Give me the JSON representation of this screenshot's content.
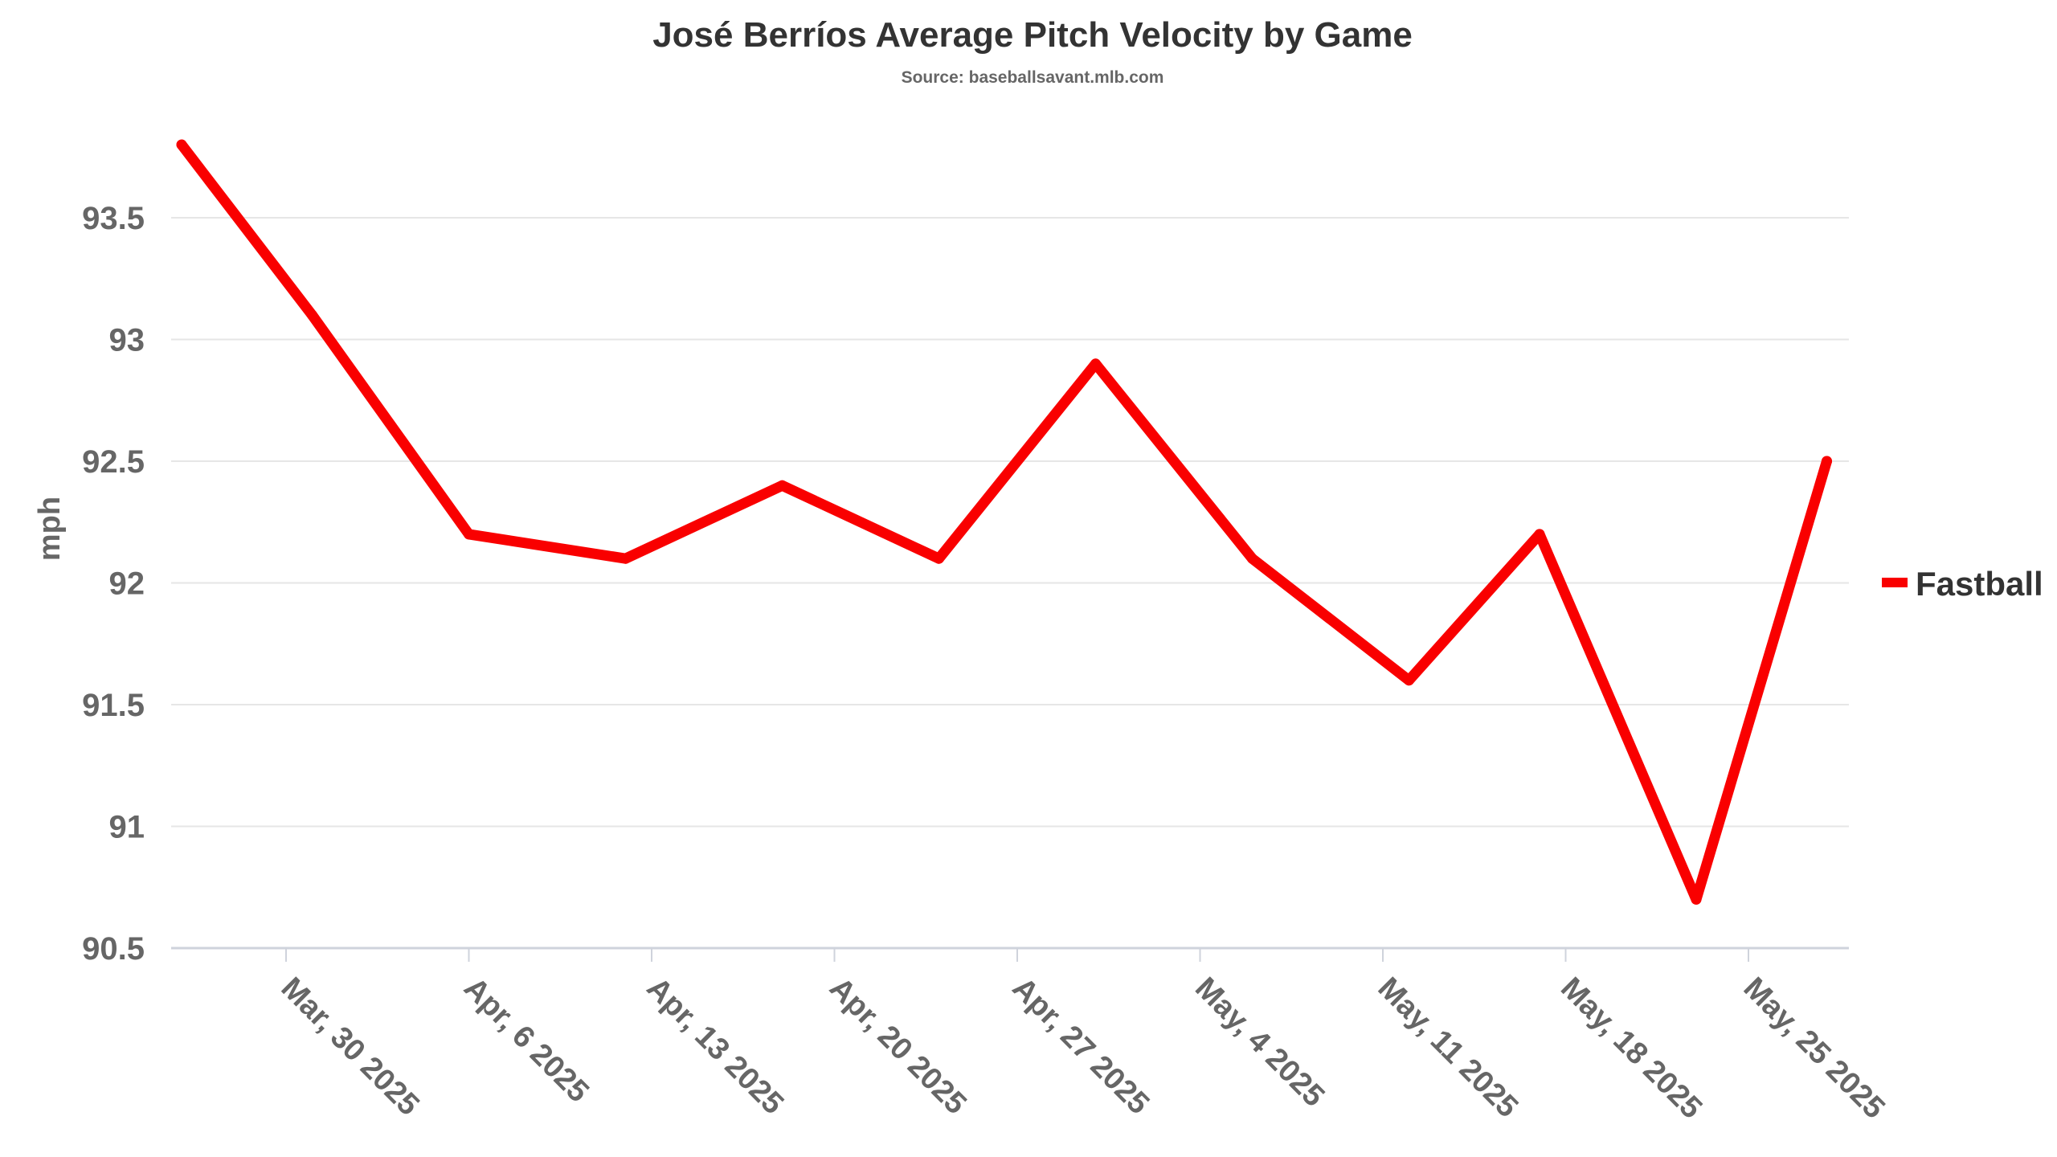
{
  "chart_data": {
    "type": "line",
    "title": "José Berríos Average Pitch Velocity by Game",
    "subtitle": "Source: baseballsavant.mlb.com",
    "xlabel": "",
    "ylabel": "mph",
    "ylim": [
      90.5,
      93.85
    ],
    "yticks": [
      90.5,
      91,
      91.5,
      92,
      92.5,
      93,
      93.5
    ],
    "ytick_labels": [
      "90.5",
      "91",
      "91.5",
      "92",
      "92.5",
      "93",
      "93.5"
    ],
    "xticks": [
      "2025-03-30",
      "2025-04-06",
      "2025-04-13",
      "2025-04-20",
      "2025-04-27",
      "2025-05-04",
      "2025-05-11",
      "2025-05-18",
      "2025-05-25"
    ],
    "xtick_labels": [
      "Mar, 30 2025",
      "Apr, 6 2025",
      "Apr, 13 2025",
      "Apr, 20 2025",
      "Apr, 27 2025",
      "May, 4 2025",
      "May, 11 2025",
      "May, 18 2025",
      "May, 25 2025"
    ],
    "grid": true,
    "legend_position": "right",
    "series": [
      {
        "name": "Fastball",
        "color": "#f90000",
        "x": [
          "2025-03-26",
          "2025-03-31",
          "2025-04-06",
          "2025-04-12",
          "2025-04-18",
          "2025-04-24",
          "2025-04-30",
          "2025-05-06",
          "2025-05-12",
          "2025-05-17",
          "2025-05-23",
          "2025-05-28"
        ],
        "values": [
          93.8,
          93.1,
          92.2,
          92.1,
          92.4,
          92.1,
          92.9,
          92.1,
          91.6,
          92.2,
          90.7,
          92.5
        ]
      }
    ]
  }
}
